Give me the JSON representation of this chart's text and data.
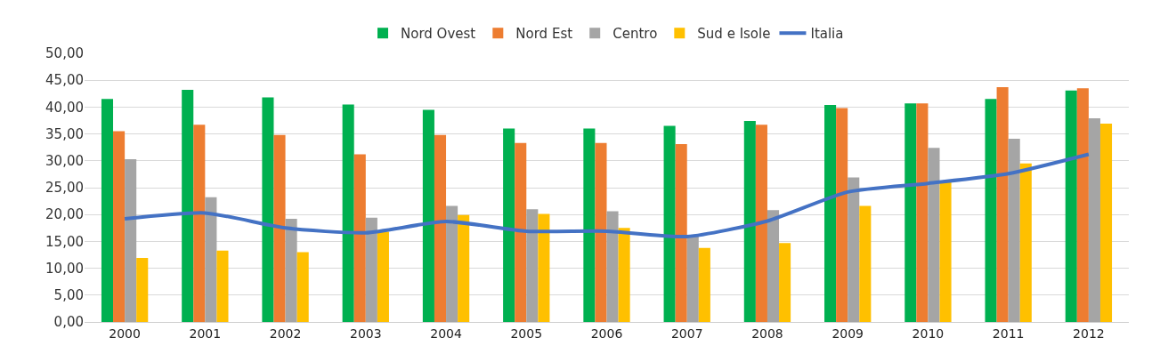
{
  "chart_data": {
    "type": "bar",
    "categories": [
      "2000",
      "2001",
      "2002",
      "2003",
      "2004",
      "2005",
      "2006",
      "2007",
      "2008",
      "2009",
      "2010",
      "2011",
      "2012"
    ],
    "series": [
      {
        "name": "Nord Ovest",
        "color": "#00b050",
        "values": [
          41.5,
          43.2,
          41.8,
          40.5,
          39.5,
          36.0,
          36.0,
          36.5,
          37.4,
          40.4,
          40.7,
          41.5,
          43.1
        ]
      },
      {
        "name": "Nord Est",
        "color": "#ed7d31",
        "values": [
          35.5,
          36.7,
          34.8,
          31.2,
          34.8,
          33.3,
          33.3,
          33.1,
          36.7,
          39.8,
          40.7,
          43.7,
          43.5
        ]
      },
      {
        "name": "Centro",
        "color": "#a5a5a5",
        "values": [
          30.3,
          23.2,
          19.2,
          19.4,
          21.6,
          21.0,
          20.6,
          16.0,
          20.8,
          26.9,
          32.4,
          34.1,
          37.9
        ]
      },
      {
        "name": "Sud e Isole",
        "color": "#ffc000",
        "values": [
          11.9,
          13.3,
          13.0,
          16.8,
          19.9,
          20.1,
          17.5,
          13.8,
          14.7,
          21.6,
          26.3,
          29.5,
          36.9
        ]
      },
      {
        "name": "Italia",
        "type": "line",
        "color": "#4472c4",
        "values": [
          19.2,
          20.3,
          17.5,
          16.6,
          18.7,
          16.9,
          16.9,
          15.9,
          18.8,
          24.2,
          25.8,
          27.6,
          31.2
        ]
      }
    ],
    "ylim": [
      0,
      50
    ],
    "yticks": [
      {
        "value": 0,
        "label": "0,00"
      },
      {
        "value": 5,
        "label": "5,00"
      },
      {
        "value": 10,
        "label": "10,00"
      },
      {
        "value": 15,
        "label": "15,00"
      },
      {
        "value": 20,
        "label": "20,00"
      },
      {
        "value": 25,
        "label": "25,00"
      },
      {
        "value": 30,
        "label": "30,00"
      },
      {
        "value": 35,
        "label": "35,00"
      },
      {
        "value": 40,
        "label": "40,00"
      },
      {
        "value": 45,
        "label": "45,00"
      },
      {
        "value": 50,
        "label": "50,00"
      }
    ],
    "grid": "y",
    "legend": "top",
    "marker": "none",
    "line_style": "solid"
  }
}
